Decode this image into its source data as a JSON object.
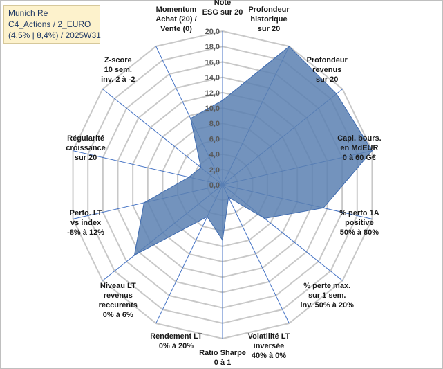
{
  "info_box": {
    "line1": "Munich Re",
    "line2": "C4_Actions / 2_EURO",
    "line3": "(4,5% | 8,4%) / 2025W31"
  },
  "colors": {
    "fill": "#5b80b1",
    "stroke": "#3d6ab0",
    "grid": "#c8c8c8",
    "spoke": "#4472c4"
  },
  "chart_data": {
    "type": "radar",
    "title": "",
    "rmin": 0,
    "rmax": 20,
    "ticks": [
      "0,0",
      "2,0",
      "4,0",
      "6,0",
      "8,0",
      "10,0",
      "12,0",
      "14,0",
      "16,0",
      "18,0",
      "20,0"
    ],
    "grid": true,
    "axes": [
      {
        "lines": [
          "Note",
          "ESG sur 20"
        ],
        "value": 11.0
      },
      {
        "lines": [
          "Profondeur",
          "historique",
          "sur 20"
        ],
        "value": 20.0
      },
      {
        "lines": [
          "Profondeur",
          "revenus",
          "sur 20"
        ],
        "value": 19.0
      },
      {
        "lines": [
          "Capi. bours.",
          "en MdEUR",
          "0 à 60 G€"
        ],
        "value": 20.0
      },
      {
        "lines": [
          "% perfo 1A",
          "positive",
          "50% à 80%"
        ],
        "value": 13.5
      },
      {
        "lines": [
          "% perte max.",
          "sur 1 sem.",
          "inv. 50% à 20%"
        ],
        "value": 7.0
      },
      {
        "lines": [
          "Volatilité LT",
          "inversée",
          "40% à 0%"
        ],
        "value": 1.8
      },
      {
        "lines": [
          "Ratio Sharpe",
          "0 à 1"
        ],
        "value": 7.2
      },
      {
        "lines": [
          "Rendement LT",
          "0% à 20%"
        ],
        "value": 4.6
      },
      {
        "lines": [
          "Niveau LT",
          "revenus",
          "reccurents",
          "0% à 6%"
        ],
        "value": 14.7
      },
      {
        "lines": [
          "Perfo. LT",
          "vs index",
          "-8% à 12%"
        ],
        "value": 10.5
      },
      {
        "lines": [
          "Régularité",
          "croissance",
          "sur 20"
        ],
        "value": 4.5
      },
      {
        "lines": [
          "Z-score",
          "10 sem.",
          "inv. 2 à -2"
        ],
        "value": 3.6
      },
      {
        "lines": [
          "Momentum",
          "Achat (20) /",
          "Vente (0)"
        ],
        "value": 9.6
      }
    ]
  }
}
